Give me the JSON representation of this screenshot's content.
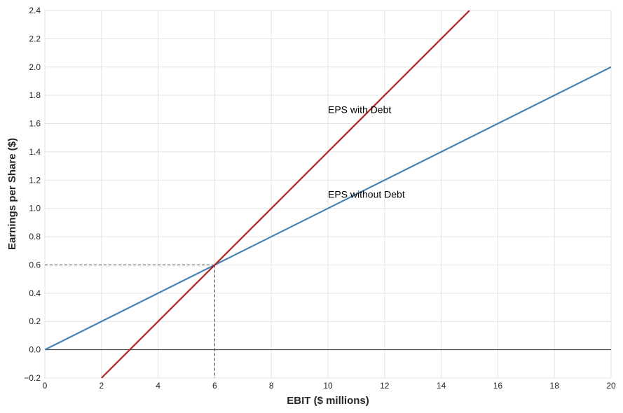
{
  "chart_data": {
    "type": "line",
    "xlabel": "EBIT ($ millions)",
    "ylabel": "Earnings per Share ($)",
    "xlim": [
      0,
      20
    ],
    "ylim": [
      -0.2,
      2.4
    ],
    "xticks": [
      0,
      2,
      4,
      6,
      8,
      10,
      12,
      14,
      16,
      18,
      20
    ],
    "yticks": [
      -0.2,
      0.0,
      0.2,
      0.4,
      0.6,
      0.8,
      1.0,
      1.2,
      1.4,
      1.6,
      1.8,
      2.0,
      2.2,
      2.4
    ],
    "xtick_labels": [
      "0",
      "2",
      "4",
      "6",
      "8",
      "10",
      "12",
      "14",
      "16",
      "18",
      "20"
    ],
    "ytick_labels": [
      "−0.2",
      "0.0",
      "0.2",
      "0.4",
      "0.6",
      "0.8",
      "1.0",
      "1.2",
      "1.4",
      "1.6",
      "1.8",
      "2.0",
      "2.2",
      "2.4"
    ],
    "grid": true,
    "series": [
      {
        "label": "EPS without Debt",
        "color": "#4682b4",
        "x": [
          0,
          20
        ],
        "y": [
          0.0,
          2.0
        ]
      },
      {
        "label": "EPS with Debt",
        "color": "#b22222",
        "x": [
          2,
          15
        ],
        "y": [
          -0.2,
          2.4
        ]
      }
    ],
    "annotations": [
      {
        "text": "EPS with Debt",
        "x": 10,
        "y": 1.7
      },
      {
        "text": "EPS without Debt",
        "x": 10,
        "y": 1.1
      }
    ],
    "zero_line": {
      "y": 0,
      "color": "#333333"
    },
    "break_even": {
      "x": 6,
      "y": 0.6,
      "color": "#444444",
      "style": "dashed"
    }
  }
}
